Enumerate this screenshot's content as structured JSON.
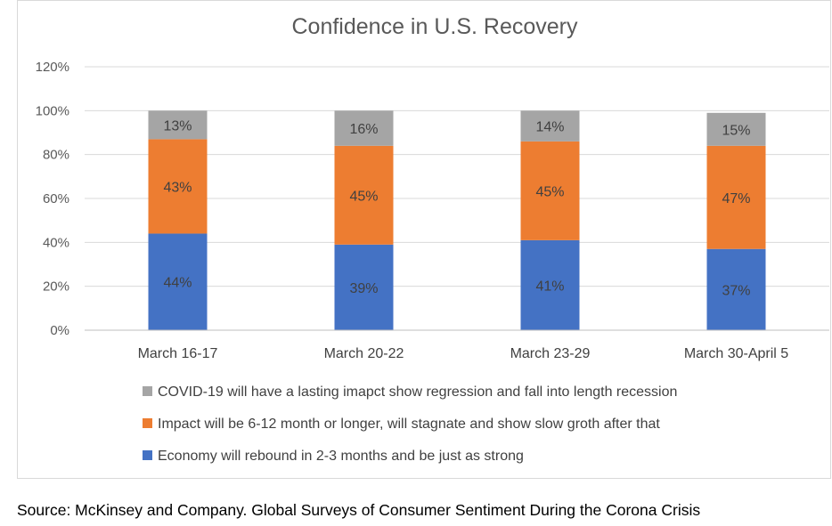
{
  "chart_data": {
    "type": "bar",
    "stacked": true,
    "title": "Confidence in U.S. Recovery",
    "xlabel": "",
    "ylabel": "",
    "ylim": [
      0,
      120
    ],
    "y_ticks": [
      "0%",
      "20%",
      "40%",
      "60%",
      "80%",
      "100%",
      "120%"
    ],
    "grid": true,
    "legend_position": "bottom",
    "categories": [
      "March 16-17",
      "March 20-22",
      "March 23-29",
      "March 30-April 5"
    ],
    "series": [
      {
        "name": "Economy will rebound in 2-3 months and be just as strong",
        "values": [
          44,
          39,
          41,
          37
        ],
        "labels": [
          "44%",
          "39%",
          "41%",
          "37%"
        ],
        "color": "#4472c4"
      },
      {
        "name": "Impact will be 6-12 month or longer, will stagnate and show slow groth after that",
        "values": [
          43,
          45,
          45,
          47
        ],
        "labels": [
          "43%",
          "45%",
          "45%",
          "47%"
        ],
        "color": "#ed7d31"
      },
      {
        "name": "COVID-19 will have a lasting imapct show regression and fall into length recession",
        "values": [
          13,
          16,
          14,
          15
        ],
        "labels": [
          "13%",
          "16%",
          "14%",
          "15%"
        ],
        "color": "#a5a5a5"
      }
    ],
    "legend_order": [
      2,
      1,
      0
    ]
  },
  "source": "Source: McKinsey and Company. Global Surveys of Consumer Sentiment During the Corona Crisis"
}
